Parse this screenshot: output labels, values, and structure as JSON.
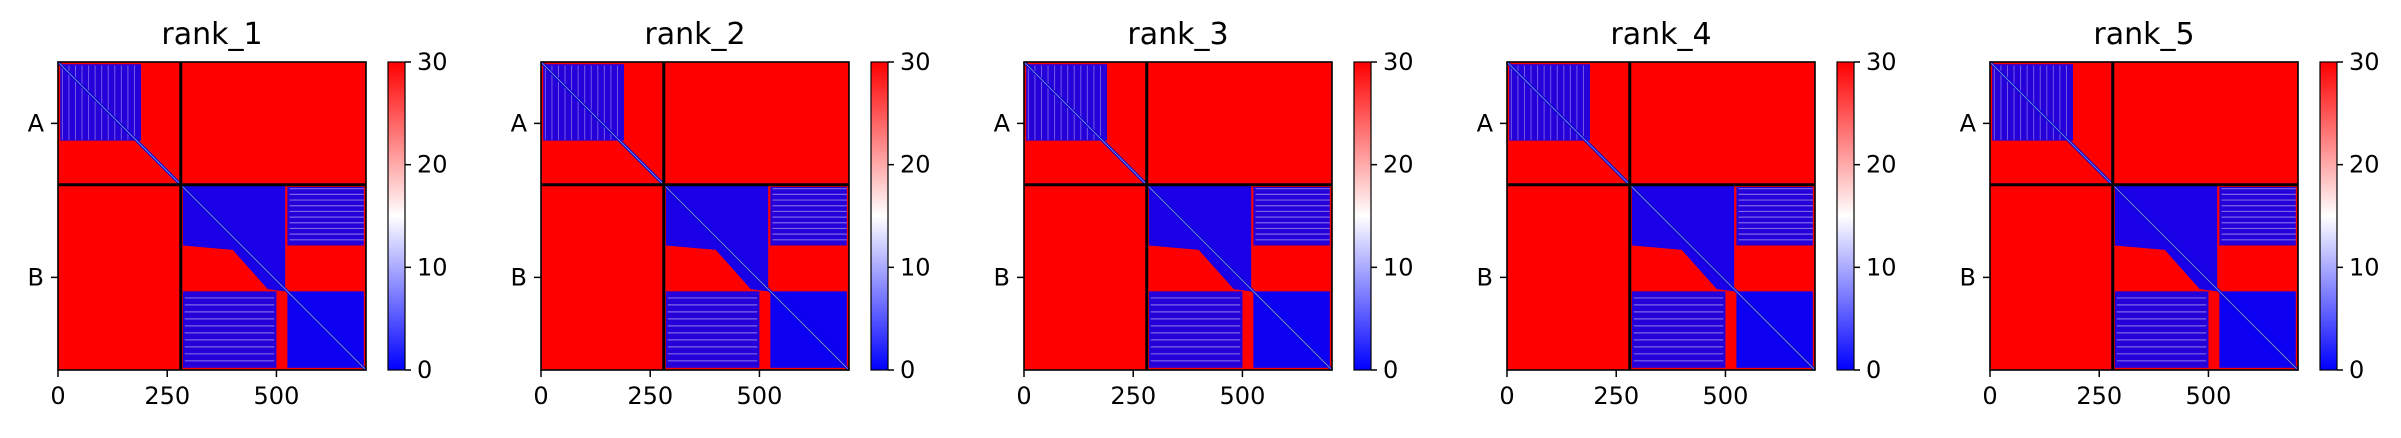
{
  "chart_data": {
    "type": "heatmap",
    "description_colormap": "bwr",
    "colormap_colors": [
      "#0000ff",
      "#ffffff",
      "#ff0000"
    ],
    "vmin": 0,
    "vmax": 30,
    "colorbar_ticks": [
      "0",
      "10",
      "20",
      "30"
    ],
    "x_ticks": [
      "0",
      "250",
      "500"
    ],
    "x_tick_values": [
      0,
      250,
      500
    ],
    "x_range": [
      0,
      705
    ],
    "chain_labels": [
      "A",
      "B"
    ],
    "chain_boundary": 281,
    "panels": [
      {
        "title": "rank_1"
      },
      {
        "title": "rank_2"
      },
      {
        "title": "rank_3"
      },
      {
        "title": "rank_4"
      },
      {
        "title": "rank_5"
      }
    ]
  }
}
